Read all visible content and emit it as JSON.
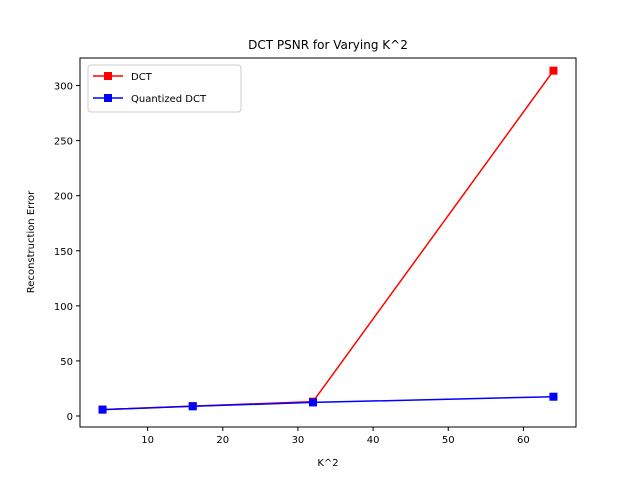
{
  "chart_data": {
    "type": "line",
    "title": "DCT PSNR for Varying K^2",
    "xlabel": "K^2",
    "ylabel": "Reconstruction Error",
    "xlim": [
      1,
      67
    ],
    "ylim": [
      -10,
      325
    ],
    "xticks": [
      10,
      20,
      30,
      40,
      50,
      60
    ],
    "yticks": [
      0,
      50,
      100,
      150,
      200,
      250,
      300
    ],
    "grid": false,
    "legend_position": "top-left",
    "x": [
      4,
      16,
      32,
      64
    ],
    "series": [
      {
        "name": "DCT",
        "color": "#ff0000",
        "marker": "square",
        "values": [
          5.8,
          9.0,
          13.0,
          313.5
        ]
      },
      {
        "name": "Quantized DCT",
        "color": "#0000ff",
        "marker": "square",
        "values": [
          5.8,
          8.8,
          12.3,
          17.5
        ]
      }
    ]
  }
}
